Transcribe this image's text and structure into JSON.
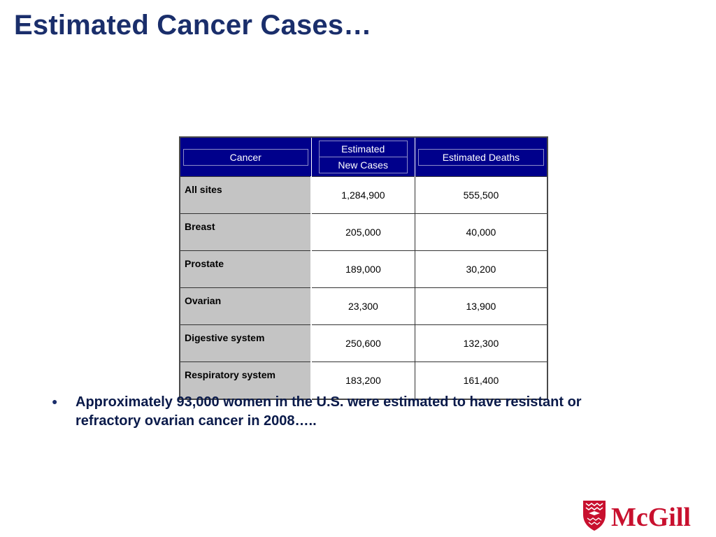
{
  "slide": {
    "title": "Estimated Cancer Cases…"
  },
  "table": {
    "headers": {
      "cancer": "Cancer",
      "new_cases_line1": "Estimated",
      "new_cases_line2": "New Cases",
      "deaths": "Estimated Deaths"
    },
    "rows": [
      {
        "site": "All sites",
        "new_cases": "1,284,900",
        "deaths": "555,500"
      },
      {
        "site": "Breast",
        "new_cases": "205,000",
        "deaths": "40,000"
      },
      {
        "site": "Prostate",
        "new_cases": "189,000",
        "deaths": "30,200"
      },
      {
        "site": "Ovarian",
        "new_cases": "23,300",
        "deaths": "13,900"
      },
      {
        "site": "Digestive system",
        "new_cases": "250,600",
        "deaths": "132,300"
      },
      {
        "site": "Respiratory system",
        "new_cases": "183,200",
        "deaths": "161,400"
      }
    ]
  },
  "bullet": {
    "symbol": "●",
    "text": "Approximately 93,000 women in the U.S. were estimated to have resistant or refractory ovarian cancer in 2008….."
  },
  "logo": {
    "wordmark": "McGill",
    "icon": "mcgill-crest-icon",
    "color": "#c8102e"
  },
  "colors": {
    "title": "#1a2e6b",
    "header_bg": "#00008b",
    "label_bg": "#c4c4c4"
  }
}
